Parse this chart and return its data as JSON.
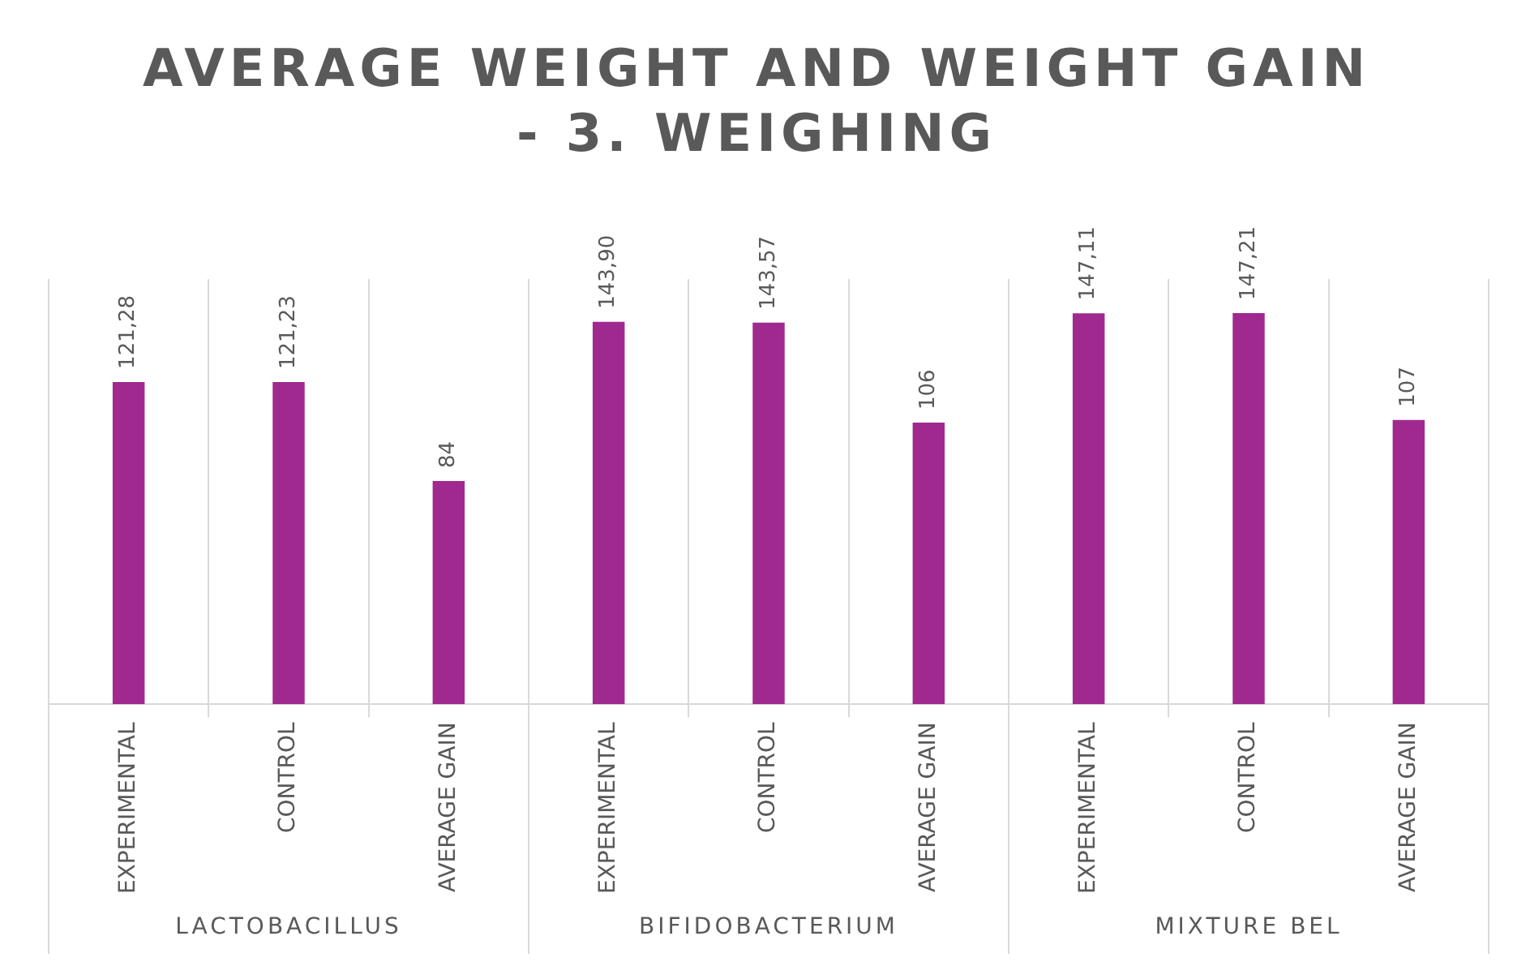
{
  "chart_data": {
    "type": "bar",
    "title": "AVERAGE WEIGHT AND WEIGHT GAIN - 3. WEIGHING",
    "categories": [
      "EXPERIMENTAL",
      "CONTROL",
      "AVERAGE GAIN",
      "EXPERIMENTAL",
      "CONTROL",
      "AVERAGE GAIN",
      "EXPERIMENTAL",
      "CONTROL",
      "AVERAGE GAIN"
    ],
    "values": [
      121.28,
      121.23,
      84,
      143.9,
      143.57,
      106,
      147.11,
      147.21,
      107
    ],
    "value_labels": [
      "121,28",
      "121,23",
      "84",
      "143,90",
      "143,57",
      "106",
      "147,11",
      "147,21",
      "107"
    ],
    "color": "#a0298f",
    "annotations": [
      "LACTOBACILLUS",
      "BIFIDOBACTERIUM",
      "MIXTURE BEL"
    ],
    "grid": "x",
    "legend": false
  }
}
